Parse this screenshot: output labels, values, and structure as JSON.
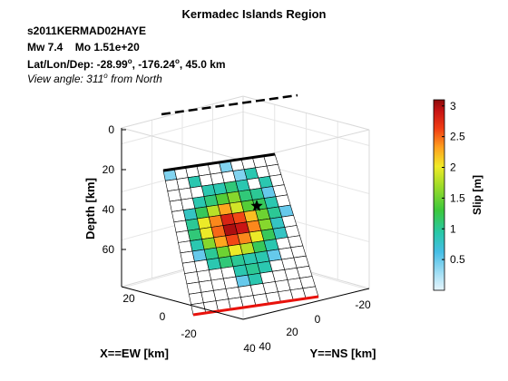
{
  "chart_data": {
    "type": "heatmap",
    "title": "Kermadec Islands Region",
    "event": {
      "id": "s2011KERMAD02HAYE",
      "magnitude": "Mw 7.4",
      "moment": "Mo 1.51e+20",
      "location_prefix": "Lat/Lon/Dep: -28.99",
      "location_lon": ", -176.24",
      "location_suffix": ", 45.0 km",
      "degree_mark": "o",
      "view_prefix": "View angle: 311",
      "view_suffix": " from North"
    },
    "axes": {
      "x": {
        "label": "X==EW [km]",
        "ticks": [
          "40",
          "20",
          "0",
          "-20"
        ]
      },
      "y": {
        "label": "Y==NS [km]",
        "ticks": [
          "40",
          "20",
          "0",
          "-20"
        ]
      },
      "z": {
        "label": "Depth [km]",
        "ticks": [
          "0",
          "20",
          "40",
          "60"
        ]
      },
      "grid": true
    },
    "colorbar": {
      "label": "Slip [m]",
      "min": 0,
      "max": 3.1,
      "ticks": [
        "3",
        "2.5",
        "2",
        "1.5",
        "1",
        "0.5"
      ]
    },
    "epicenter_marker": "star",
    "slip_grid": {
      "rows": 14,
      "cols": 10,
      "unit": "m",
      "values": [
        [
          0.4,
          0.0,
          0.0,
          0.0,
          0.0,
          0.4,
          0.0,
          0.0,
          0.0,
          0.0
        ],
        [
          0.0,
          0.0,
          0.9,
          0.0,
          0.0,
          0.0,
          0.4,
          0.9,
          0.0,
          0.0
        ],
        [
          0.0,
          0.0,
          0.0,
          0.9,
          0.9,
          1.1,
          0.9,
          0.0,
          0.9,
          0.0
        ],
        [
          0.0,
          0.0,
          0.9,
          1.1,
          1.4,
          1.6,
          1.1,
          1.0,
          0.5,
          0.0
        ],
        [
          0.0,
          0.8,
          1.2,
          1.8,
          2.3,
          1.9,
          1.4,
          1.2,
          0.9,
          0.0
        ],
        [
          0.0,
          1.0,
          2.0,
          2.4,
          2.8,
          2.6,
          2.2,
          1.5,
          1.0,
          0.5
        ],
        [
          0.0,
          1.1,
          2.0,
          2.5,
          3.0,
          2.9,
          2.4,
          1.6,
          0.8,
          0.0
        ],
        [
          0.0,
          0.9,
          1.6,
          2.3,
          2.6,
          2.4,
          2.0,
          1.2,
          0.8,
          0.0
        ],
        [
          0.0,
          0.5,
          1.0,
          1.5,
          2.0,
          1.8,
          1.2,
          0.9,
          0.0,
          0.0
        ],
        [
          0.0,
          0.0,
          0.9,
          1.1,
          1.0,
          0.9,
          0.9,
          0.5,
          0.0,
          0.0
        ],
        [
          0.0,
          0.0,
          0.0,
          0.0,
          0.9,
          1.0,
          0.9,
          0.0,
          0.0,
          0.0
        ],
        [
          0.0,
          0.0,
          0.0,
          0.0,
          0.5,
          0.9,
          0.0,
          0.0,
          0.0,
          0.0
        ],
        [
          0.0,
          0.0,
          0.0,
          0.0,
          0.0,
          0.0,
          0.0,
          0.0,
          0.0,
          0.0
        ],
        [
          0.0,
          0.0,
          0.0,
          0.0,
          0.0,
          0.0,
          0.0,
          0.0,
          0.0,
          0.0
        ]
      ]
    }
  }
}
